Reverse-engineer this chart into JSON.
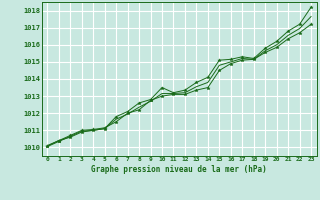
{
  "title": "Graphe pression niveau de la mer (hPa)",
  "background_color": "#c8e8e0",
  "grid_color": "#b0d8d0",
  "line_color": "#1a6b1a",
  "xlim": [
    -0.5,
    23.5
  ],
  "ylim": [
    1009.5,
    1018.5
  ],
  "yticks": [
    1010,
    1011,
    1012,
    1013,
    1014,
    1015,
    1016,
    1017,
    1018
  ],
  "xticks": [
    0,
    1,
    2,
    3,
    4,
    5,
    6,
    7,
    8,
    9,
    10,
    11,
    12,
    13,
    14,
    15,
    16,
    17,
    18,
    19,
    20,
    21,
    22,
    23
  ],
  "series1_x": [
    0,
    1,
    2,
    3,
    4,
    5,
    6,
    7,
    8,
    9,
    10,
    11,
    12,
    13,
    14,
    15,
    16,
    17,
    18,
    19,
    20,
    21,
    22,
    23
  ],
  "series1_y": [
    1010.1,
    1010.4,
    1010.6,
    1010.9,
    1011.0,
    1011.1,
    1011.8,
    1012.1,
    1012.6,
    1012.8,
    1013.5,
    1013.2,
    1013.35,
    1013.8,
    1014.1,
    1015.1,
    1015.15,
    1015.3,
    1015.2,
    1015.8,
    1016.2,
    1016.8,
    1017.2,
    1018.2
  ],
  "series2_x": [
    0,
    1,
    2,
    3,
    4,
    5,
    6,
    7,
    8,
    9,
    10,
    11,
    12,
    13,
    14,
    15,
    16,
    17,
    18,
    19,
    20,
    21,
    22,
    23
  ],
  "series2_y": [
    1010.1,
    1010.4,
    1010.7,
    1011.0,
    1011.05,
    1011.15,
    1011.5,
    1012.0,
    1012.2,
    1012.75,
    1013.0,
    1013.1,
    1013.1,
    1013.35,
    1013.5,
    1014.5,
    1014.9,
    1015.1,
    1015.15,
    1015.55,
    1015.85,
    1016.35,
    1016.7,
    1017.2
  ],
  "series3_x": [
    0,
    1,
    2,
    3,
    4,
    5,
    6,
    7,
    8,
    9,
    10,
    11,
    12,
    13,
    14,
    15,
    16,
    17,
    18,
    19,
    20,
    21,
    22,
    23
  ],
  "series3_y": [
    1010.05,
    1010.35,
    1010.65,
    1010.95,
    1011.0,
    1011.1,
    1011.65,
    1011.95,
    1012.35,
    1012.7,
    1013.15,
    1013.15,
    1013.2,
    1013.55,
    1013.8,
    1014.8,
    1015.0,
    1015.2,
    1015.15,
    1015.65,
    1016.0,
    1016.55,
    1016.95,
    1017.65
  ]
}
